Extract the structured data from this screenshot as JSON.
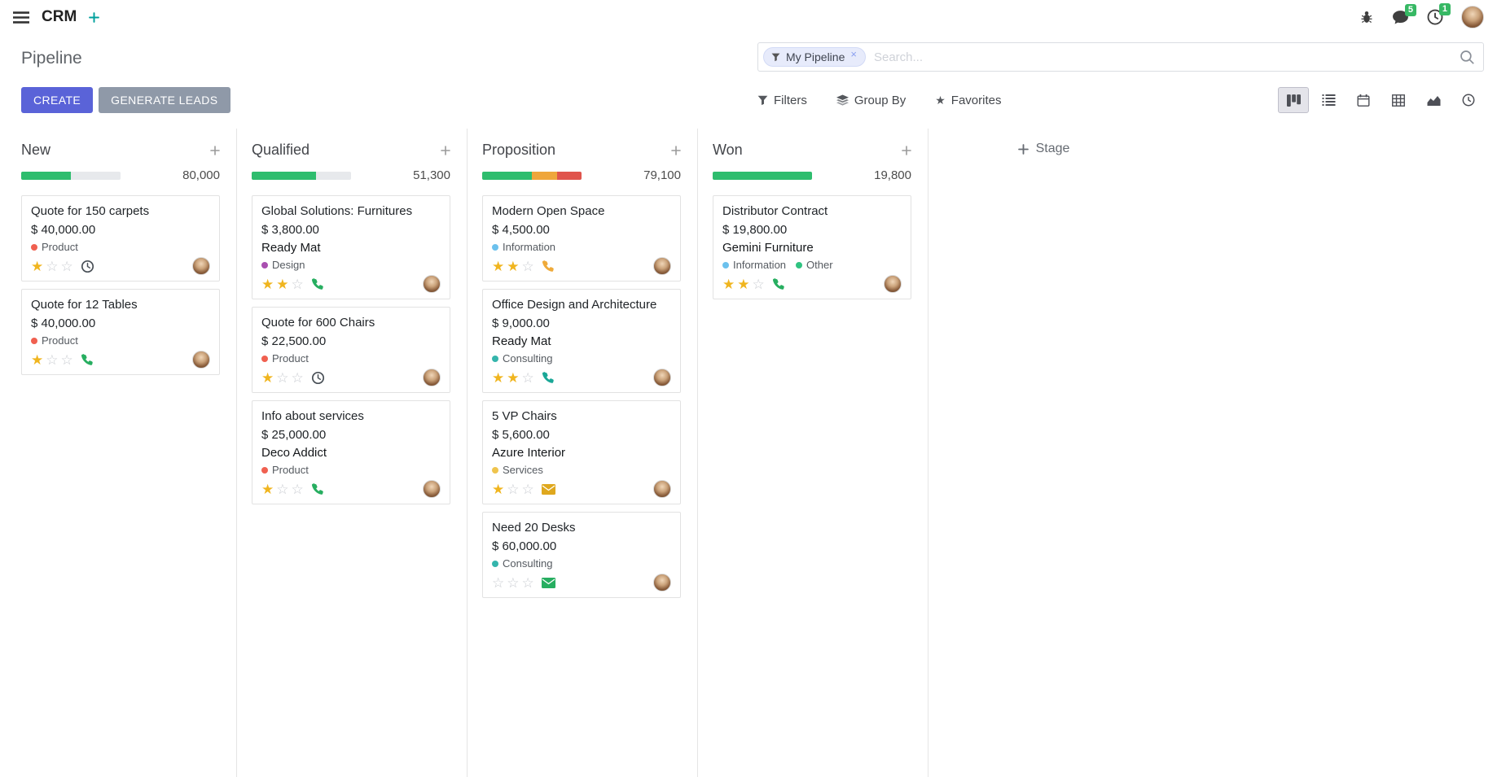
{
  "theme": {
    "accent": "#5a63d8",
    "secondary_button": "#8f99a8",
    "success": "#2ebd6e",
    "warning": "#efa63b",
    "danger": "#e0544c",
    "badge": "#37b864",
    "progress_track": "#e7e9ec",
    "star_on": "#f0b51f",
    "star_off": "#c9ccd1"
  },
  "navbar": {
    "app_name": "CRM",
    "chat_badge": "5",
    "activity_badge": "1"
  },
  "control_panel": {
    "title": "Pipeline",
    "create_label": "CREATE",
    "generate_leads_label": "GENERATE LEADS",
    "search": {
      "facet_label": "My Pipeline",
      "remove_label": "×",
      "placeholder": "Search..."
    },
    "filters_label": "Filters",
    "group_by_label": "Group By",
    "favorites_label": "Favorites"
  },
  "view_switcher": {
    "active": "kanban",
    "views": [
      "kanban",
      "list",
      "calendar",
      "pivot",
      "graph",
      "activity"
    ]
  },
  "board": {
    "add_stage_label": "Stage",
    "columns": [
      {
        "name": "New",
        "total": "80,000",
        "progress": [
          {
            "name": "success",
            "pct": 50
          }
        ],
        "cards": [
          {
            "title": "Quote for 150 carpets",
            "amount": "$ 40,000.00",
            "tags": [
              {
                "label": "Product",
                "color": "#f06050"
              }
            ],
            "stars": 1,
            "activity": {
              "type": "clock",
              "color": "#495057"
            }
          },
          {
            "title": "Quote for 12 Tables",
            "amount": "$ 40,000.00",
            "tags": [
              {
                "label": "Product",
                "color": "#f06050"
              }
            ],
            "stars": 1,
            "activity": {
              "type": "phone",
              "color": "#27ae60"
            }
          }
        ]
      },
      {
        "name": "Qualified",
        "total": "51,300",
        "progress": [
          {
            "name": "success",
            "pct": 65
          }
        ],
        "cards": [
          {
            "title": "Global Solutions: Furnitures",
            "amount": "$ 3,800.00",
            "partner": "Ready Mat",
            "tags": [
              {
                "label": "Design",
                "color": "#a94fb0"
              }
            ],
            "stars": 2,
            "activity": {
              "type": "phone",
              "color": "#27ae60"
            }
          },
          {
            "title": "Quote for 600 Chairs",
            "amount": "$ 22,500.00",
            "tags": [
              {
                "label": "Product",
                "color": "#f06050"
              }
            ],
            "stars": 1,
            "activity": {
              "type": "clock",
              "color": "#495057"
            }
          },
          {
            "title": "Info about services",
            "amount": "$ 25,000.00",
            "partner": "Deco Addict",
            "tags": [
              {
                "label": "Product",
                "color": "#f06050"
              }
            ],
            "stars": 1,
            "activity": {
              "type": "phone",
              "color": "#27ae60"
            }
          }
        ]
      },
      {
        "name": "Proposition",
        "total": "79,100",
        "progress": [
          {
            "name": "success",
            "pct": 50
          },
          {
            "name": "warning",
            "pct": 25
          },
          {
            "name": "danger",
            "pct": 25
          }
        ],
        "cards": [
          {
            "title": "Modern Open Space",
            "amount": "$ 4,500.00",
            "tags": [
              {
                "label": "Information",
                "color": "#6cc1ed"
              }
            ],
            "stars": 2,
            "activity": {
              "type": "phone",
              "color": "#efaa3a"
            }
          },
          {
            "title": "Office Design and Architecture",
            "amount": "$ 9,000.00",
            "partner": "Ready Mat",
            "tags": [
              {
                "label": "Consulting",
                "color": "#35b5ac"
              }
            ],
            "stars": 2,
            "activity": {
              "type": "phone",
              "color": "#1aa797"
            }
          },
          {
            "title": "5 VP Chairs",
            "amount": "$ 5,600.00",
            "partner": "Azure Interior",
            "tags": [
              {
                "label": "Services",
                "color": "#efc44d"
              }
            ],
            "stars": 1,
            "activity": {
              "type": "envelope",
              "color": "#dfa81e"
            }
          },
          {
            "title": "Need 20 Desks",
            "amount": "$ 60,000.00",
            "tags": [
              {
                "label": "Consulting",
                "color": "#35b5ac"
              }
            ],
            "stars": 0,
            "activity": {
              "type": "envelope",
              "color": "#27ae60"
            }
          }
        ]
      },
      {
        "name": "Won",
        "total": "19,800",
        "progress": [
          {
            "name": "success",
            "pct": 100
          }
        ],
        "cards": [
          {
            "title": "Distributor Contract",
            "amount": "$ 19,800.00",
            "partner": "Gemini Furniture",
            "tags": [
              {
                "label": "Information",
                "color": "#6cc1ed"
              },
              {
                "label": "Other",
                "color": "#30c381"
              }
            ],
            "stars": 2,
            "activity": {
              "type": "phone",
              "color": "#27ae60"
            }
          }
        ]
      }
    ]
  }
}
